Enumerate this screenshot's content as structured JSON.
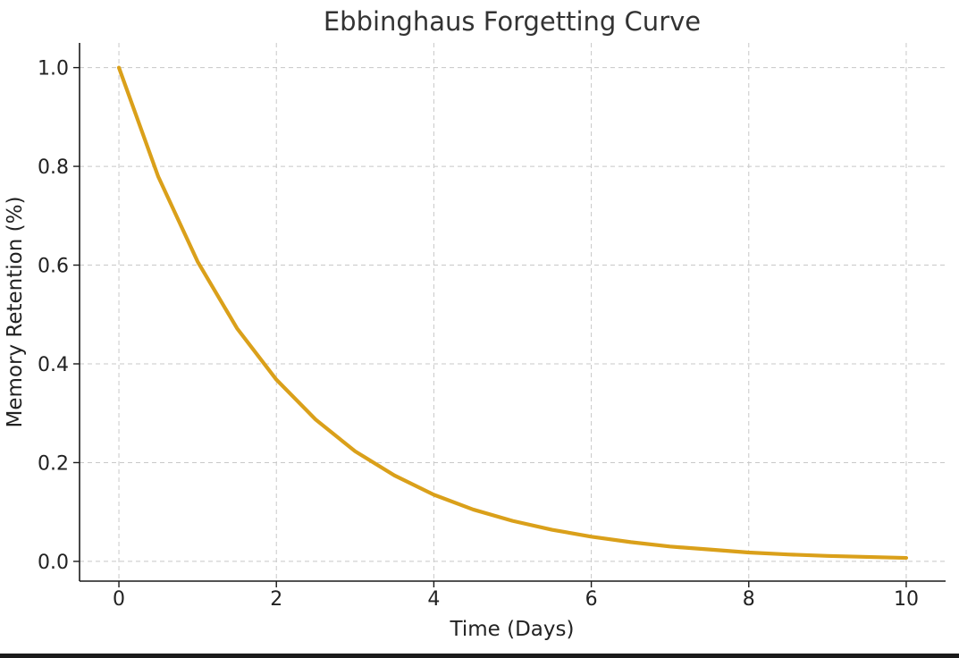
{
  "chart_data": {
    "type": "line",
    "title": "Ebbinghaus Forgetting Curve",
    "xlabel": "Time (Days)",
    "ylabel": "Memory Retention (%)",
    "xlim": [
      -0.5,
      10.5
    ],
    "ylim": [
      -0.04,
      1.05
    ],
    "x_ticks": [
      0,
      2,
      4,
      6,
      8,
      10
    ],
    "y_ticks": [
      0.0,
      0.2,
      0.4,
      0.6,
      0.8,
      1.0
    ],
    "x_tick_labels": [
      "0",
      "2",
      "4",
      "6",
      "8",
      "10"
    ],
    "y_tick_labels": [
      "0.0",
      "0.2",
      "0.4",
      "0.6",
      "0.8",
      "1.0"
    ],
    "grid": true,
    "legend": "none",
    "series": [
      {
        "color": "#DAA01A",
        "x": [
          0,
          0.5,
          1,
          1.5,
          2,
          2.5,
          3,
          3.5,
          4,
          4.5,
          5,
          5.5,
          6,
          6.5,
          7,
          7.5,
          8,
          8.5,
          9,
          9.5,
          10
        ],
        "y": [
          1.0,
          0.779,
          0.607,
          0.472,
          0.368,
          0.287,
          0.223,
          0.174,
          0.135,
          0.105,
          0.082,
          0.064,
          0.05,
          0.039,
          0.03,
          0.024,
          0.018,
          0.014,
          0.011,
          0.009,
          0.007
        ]
      }
    ]
  }
}
